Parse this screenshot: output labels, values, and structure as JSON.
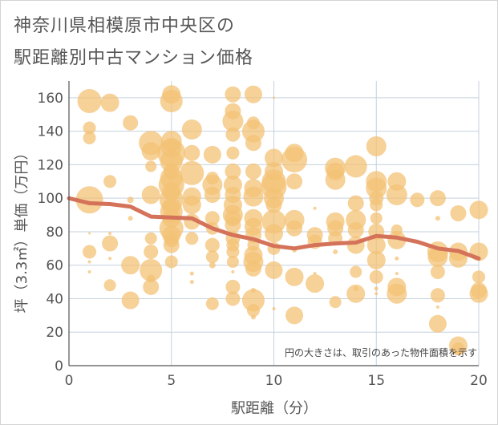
{
  "title_lines": [
    "神奈川県相模原市中央区の",
    "駅距離別中古マンション価格"
  ],
  "note": "円の大きさは、取引のあった物件面積を示す",
  "colors": {
    "bubble": "#f3c276",
    "line": "#d4735a",
    "grid": "#c5d1de",
    "axis": "#555555"
  },
  "chart_data": {
    "type": "scatter",
    "xlabel": "駅距離（分）",
    "ylabel": "坪（3.3㎡）単価（万円）",
    "xlim": [
      0,
      20
    ],
    "ylim": [
      0,
      170
    ],
    "x_ticks": [
      0,
      5,
      10,
      15,
      20
    ],
    "y_ticks": [
      0,
      20,
      40,
      60,
      80,
      100,
      120,
      140,
      160
    ],
    "bubbles": [
      [
        1,
        158,
        3
      ],
      [
        1,
        142,
        1.6
      ],
      [
        1,
        136,
        1.6
      ],
      [
        1,
        99,
        3.4
      ],
      [
        1,
        79,
        0.3
      ],
      [
        1,
        68,
        1.7
      ],
      [
        1,
        62,
        0.4
      ],
      [
        1,
        56,
        0.4
      ],
      [
        2,
        157,
        2.3
      ],
      [
        2,
        110,
        1.6
      ],
      [
        2,
        79,
        0.4
      ],
      [
        2,
        73,
        2
      ],
      [
        2,
        64,
        0.4
      ],
      [
        2,
        48,
        1.5
      ],
      [
        3,
        145,
        1.9
      ],
      [
        3,
        99,
        0.8
      ],
      [
        3,
        88,
        0.6
      ],
      [
        3,
        60,
        2.3
      ],
      [
        3,
        39,
        2.2
      ],
      [
        4,
        133,
        3
      ],
      [
        4,
        128,
        2.3
      ],
      [
        4,
        119,
        1.4
      ],
      [
        4,
        102,
        2.3
      ],
      [
        4,
        76,
        1.5
      ],
      [
        4,
        68,
        1.8
      ],
      [
        4,
        57,
        2.8
      ],
      [
        4,
        52,
        1
      ],
      [
        4,
        47,
        2
      ],
      [
        5,
        162,
        2.3
      ],
      [
        5,
        158,
        2.8
      ],
      [
        5,
        134,
        2.6
      ],
      [
        5,
        130,
        2.5
      ],
      [
        5,
        127,
        3.5
      ],
      [
        5,
        122,
        2.8
      ],
      [
        5,
        116,
        2
      ],
      [
        5,
        112,
        2.8
      ],
      [
        5,
        108,
        3.2
      ],
      [
        5,
        104,
        2.3
      ],
      [
        5,
        99,
        3
      ],
      [
        5,
        95,
        2.3
      ],
      [
        5,
        92,
        2.8
      ],
      [
        5,
        88,
        2.3
      ],
      [
        5,
        82,
        3
      ],
      [
        5,
        78,
        2.3
      ],
      [
        5,
        75,
        1.8
      ],
      [
        5,
        72,
        2
      ],
      [
        5,
        62,
        1.6
      ],
      [
        6,
        141,
        2.5
      ],
      [
        6,
        127,
        2
      ],
      [
        6,
        115,
        3
      ],
      [
        6,
        101,
        2.3
      ],
      [
        6,
        96,
        2.3
      ],
      [
        6,
        86,
        2
      ],
      [
        6,
        76,
        1.6
      ],
      [
        6,
        55,
        0.5
      ],
      [
        6,
        50,
        0.5
      ],
      [
        7,
        126,
        2.2
      ],
      [
        7,
        112,
        1.6
      ],
      [
        7,
        108,
        2.5
      ],
      [
        7,
        102,
        2
      ],
      [
        7,
        88,
        1.8
      ],
      [
        7,
        82,
        1.6
      ],
      [
        7,
        72,
        1.8
      ],
      [
        7,
        65,
        1.6
      ],
      [
        7,
        60,
        0.8
      ],
      [
        7,
        37,
        1.6
      ],
      [
        8,
        162,
        2
      ],
      [
        8,
        152,
        2
      ],
      [
        8,
        146,
        2.6
      ],
      [
        8,
        138,
        1.8
      ],
      [
        8,
        127,
        1.6
      ],
      [
        8,
        116,
        2
      ],
      [
        8,
        108,
        2.3
      ],
      [
        8,
        102,
        2
      ],
      [
        8,
        96,
        2.3
      ],
      [
        8,
        90,
        2.5
      ],
      [
        8,
        88,
        2
      ],
      [
        8,
        84,
        2
      ],
      [
        8,
        76,
        1.8
      ],
      [
        8,
        72,
        1.6
      ],
      [
        8,
        68,
        1.6
      ],
      [
        8,
        62,
        1.5
      ],
      [
        8,
        56,
        0.4
      ],
      [
        8,
        47,
        1.8
      ],
      [
        8,
        40,
        1.8
      ],
      [
        9,
        162,
        2.2
      ],
      [
        9,
        145,
        1.6
      ],
      [
        9,
        140,
        2.8
      ],
      [
        9,
        133,
        2
      ],
      [
        9,
        116,
        2
      ],
      [
        9,
        106,
        2.3
      ],
      [
        9,
        101,
        2.5
      ],
      [
        9,
        88,
        2.3
      ],
      [
        9,
        83,
        2.2
      ],
      [
        9,
        78,
        2
      ],
      [
        9,
        72,
        1.5
      ],
      [
        9,
        66,
        2.3
      ],
      [
        9,
        62,
        2.5
      ],
      [
        9,
        58,
        2
      ],
      [
        9,
        45,
        0.6
      ],
      [
        9,
        39,
        2.8
      ],
      [
        9,
        33,
        1.6
      ],
      [
        9,
        29,
        0.6
      ],
      [
        10,
        160,
        0.3
      ],
      [
        10,
        124,
        2.3
      ],
      [
        10,
        116,
        2.3
      ],
      [
        10,
        110,
        3
      ],
      [
        10,
        107,
        3.2
      ],
      [
        10,
        100,
        2.5
      ],
      [
        10,
        96,
        2
      ],
      [
        10,
        86,
        3
      ],
      [
        10,
        79,
        2.3
      ],
      [
        10,
        70,
        1.6
      ],
      [
        10,
        57,
        2.2
      ],
      [
        10,
        34,
        0.4
      ],
      [
        11,
        127,
        2.3
      ],
      [
        11,
        123,
        3.2
      ],
      [
        11,
        110,
        2
      ],
      [
        11,
        87,
        2.5
      ],
      [
        11,
        82,
        2
      ],
      [
        11,
        69,
        0.6
      ],
      [
        11,
        53,
        2.3
      ],
      [
        11,
        30,
        2.2
      ],
      [
        12,
        94,
        0.4
      ],
      [
        12,
        78,
        2
      ],
      [
        12,
        74,
        1.8
      ],
      [
        12,
        49,
        2.3
      ],
      [
        12,
        55,
        0.4
      ],
      [
        13,
        118,
        2.6
      ],
      [
        13,
        116,
        2.2
      ],
      [
        13,
        111,
        2.5
      ],
      [
        13,
        86,
        2.3
      ],
      [
        13,
        82,
        2
      ],
      [
        13,
        76,
        1.8
      ],
      [
        13,
        68,
        0.6
      ],
      [
        13,
        38,
        1.5
      ],
      [
        14,
        119,
        2.8
      ],
      [
        14,
        97,
        2
      ],
      [
        14,
        87,
        2.5
      ],
      [
        14,
        81,
        2
      ],
      [
        14,
        72,
        2.2
      ],
      [
        14,
        56,
        1.5
      ],
      [
        14,
        46,
        0.6
      ],
      [
        14,
        43,
        2.3
      ],
      [
        15,
        131,
        2.5
      ],
      [
        15,
        110,
        2.6
      ],
      [
        15,
        106,
        2.6
      ],
      [
        15,
        100,
        1.8
      ],
      [
        15,
        96,
        1.6
      ],
      [
        15,
        88,
        1.5
      ],
      [
        15,
        80,
        2
      ],
      [
        15,
        72,
        2.3
      ],
      [
        15,
        63,
        2.3
      ],
      [
        15,
        53,
        1.7
      ],
      [
        15,
        46,
        0.5
      ],
      [
        15,
        43,
        0.4
      ],
      [
        16,
        110,
        2.3
      ],
      [
        16,
        102,
        2.6
      ],
      [
        16,
        81,
        1.4
      ],
      [
        16,
        75,
        2.3
      ],
      [
        16,
        64,
        0.5
      ],
      [
        16,
        47,
        2.3
      ],
      [
        16,
        43,
        2.5
      ],
      [
        16,
        55,
        0.4
      ],
      [
        17,
        99,
        1.8
      ],
      [
        18,
        100,
        2
      ],
      [
        18,
        88,
        0.6
      ],
      [
        18,
        68,
        2.6
      ],
      [
        18,
        65,
        2.5
      ],
      [
        18,
        56,
        1.8
      ],
      [
        18,
        42,
        1.8
      ],
      [
        18,
        35,
        0.4
      ],
      [
        18,
        25,
        2.2
      ],
      [
        19,
        91,
        2
      ],
      [
        19,
        68,
        2.3
      ],
      [
        19,
        64,
        2.3
      ],
      [
        19,
        12,
        2.3
      ],
      [
        19,
        10,
        1.6
      ],
      [
        20,
        93,
        2.3
      ],
      [
        20,
        68,
        2.3
      ],
      [
        20,
        53,
        1.6
      ],
      [
        20,
        45,
        2
      ],
      [
        20,
        43,
        2.3
      ]
    ],
    "trend": {
      "x": [
        0,
        1,
        2,
        3,
        4,
        5,
        6,
        7,
        8,
        9,
        10,
        11,
        12,
        13,
        14,
        15,
        16,
        17,
        18,
        19,
        20
      ],
      "y": [
        100,
        97,
        96.5,
        95,
        89,
        88.5,
        88,
        82,
        78,
        75.5,
        71.5,
        70,
        72,
        73,
        73.5,
        77.5,
        76.5,
        74,
        70,
        68.5,
        64
      ]
    }
  }
}
